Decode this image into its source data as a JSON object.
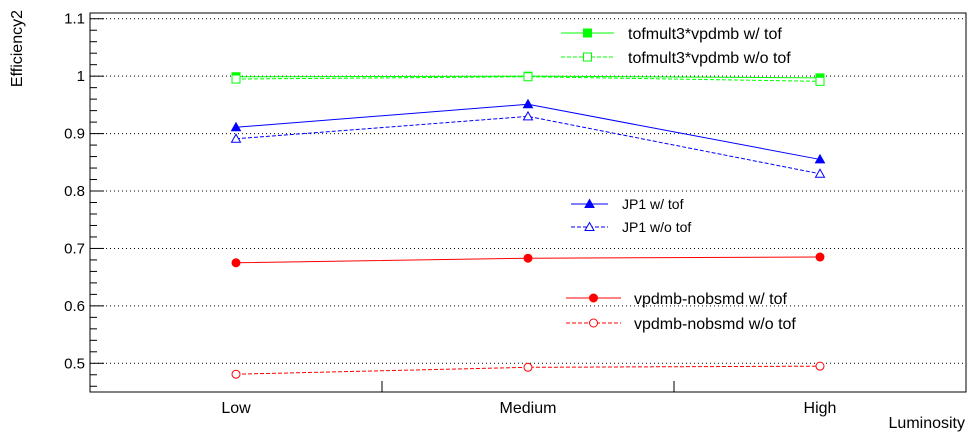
{
  "chart_data": {
    "type": "line",
    "title": "",
    "xlabel": "Luminosity",
    "ylabel": "Efficiency2",
    "categories": [
      "Low",
      "Medium",
      "High"
    ],
    "ylim": [
      0.45,
      1.11
    ],
    "yticks": [
      0.5,
      0.6,
      0.7,
      0.8,
      0.9,
      1,
      1.1
    ],
    "grid": "horizontal-dotted",
    "series": [
      {
        "name": "tofmult3*vpdmb w/ tof",
        "values": [
          0.999,
          1.0,
          0.997
        ],
        "color": "#00ff00",
        "marker": "square-filled",
        "dashed": false
      },
      {
        "name": "tofmult3*vpdmb w/o tof",
        "values": [
          0.995,
          0.999,
          0.991
        ],
        "color": "#00ff00",
        "marker": "square-open",
        "dashed": true
      },
      {
        "name": "JP1 w/ tof",
        "values": [
          0.911,
          0.951,
          0.855
        ],
        "color": "#0000ff",
        "marker": "triangle-filled",
        "dashed": false
      },
      {
        "name": "JP1 w/o tof",
        "values": [
          0.891,
          0.93,
          0.83
        ],
        "color": "#0000ff",
        "marker": "triangle-open",
        "dashed": true
      },
      {
        "name": "vpdmb-nobsmd w/ tof",
        "values": [
          0.675,
          0.683,
          0.685
        ],
        "color": "#ff0000",
        "marker": "circle-filled",
        "dashed": false
      },
      {
        "name": "vpdmb-nobsmd w/o tof",
        "values": [
          0.481,
          0.493,
          0.495
        ],
        "color": "#ff0000",
        "marker": "circle-open",
        "dashed": true
      }
    ],
    "legends": [
      {
        "series": [
          0,
          1
        ],
        "placement": "top-right"
      },
      {
        "series": [
          2,
          3
        ],
        "placement": "center-right"
      },
      {
        "series": [
          4,
          5
        ],
        "placement": "lower-right"
      }
    ]
  }
}
